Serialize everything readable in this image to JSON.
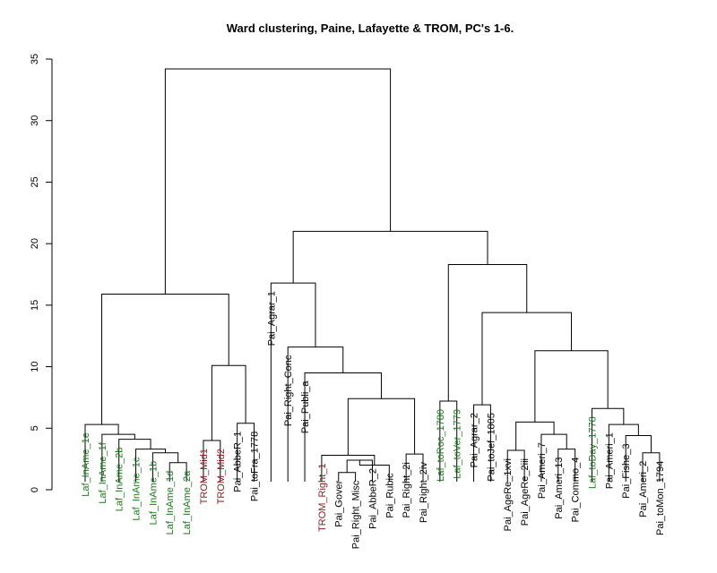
{
  "chart_data": {
    "type": "dendrogram",
    "title": "Ward clustering, Paine, Lafayette & TROM, PC's 1-6.",
    "ylim": [
      0,
      35
    ],
    "y_ticks": [
      0,
      5,
      10,
      15,
      20,
      25,
      30,
      35
    ],
    "colors": {
      "Laf": "#1a7a1a",
      "TROM": "#8b1a1a",
      "Pai": "#000000"
    },
    "leaves": [
      {
        "label": "Laf_InAme_1e",
        "group": "Laf"
      },
      {
        "label": "Laf_InAme_1f",
        "group": "Laf"
      },
      {
        "label": "Laf_InAme_2b",
        "group": "Laf"
      },
      {
        "label": "Laf_InAme_1c",
        "group": "Laf"
      },
      {
        "label": "Laf_InAme_1b",
        "group": "Laf"
      },
      {
        "label": "Laf_InAme_1d",
        "group": "Laf"
      },
      {
        "label": "Laf_InAme_2a",
        "group": "Laf"
      },
      {
        "label": "TROM_Mid1",
        "group": "TROM"
      },
      {
        "label": "TROM_Mid2",
        "group": "TROM"
      },
      {
        "label": "Pai_AbbeR_1",
        "group": "Pai"
      },
      {
        "label": "Pai_toFra_1778",
        "group": "Pai"
      },
      {
        "label": "Pai_Agrar_1",
        "group": "Pai"
      },
      {
        "label": "Pai_Right_Conc",
        "group": "Pai"
      },
      {
        "label": "Pai_Publi_a",
        "group": "Pai"
      },
      {
        "label": "TROM_Right_1",
        "group": "TROM"
      },
      {
        "label": "Pai_Gover",
        "group": "Pai"
      },
      {
        "label": "Pai_Right_Misc",
        "group": "Pai"
      },
      {
        "label": "Pai_AbbeR_2",
        "group": "Pai"
      },
      {
        "label": "Pai_Rubic",
        "group": "Pai"
      },
      {
        "label": "Pai_Right_2i",
        "group": "Pai"
      },
      {
        "label": "Pai_Right_2iv",
        "group": "Pai"
      },
      {
        "label": "Laf_toRoc_1780",
        "group": "Laf"
      },
      {
        "label": "Laf_toVer_1779",
        "group": "Laf"
      },
      {
        "label": "Pai_Agrar_2",
        "group": "Pai"
      },
      {
        "label": "Pai_toJef_1805",
        "group": "Pai"
      },
      {
        "label": "Pai_AgeRe_1xvi",
        "group": "Pai"
      },
      {
        "label": "Pai_AgeRe_2iii",
        "group": "Pai"
      },
      {
        "label": "Pai_Ameri_7",
        "group": "Pai"
      },
      {
        "label": "Pai_Ameri_13",
        "group": "Pai"
      },
      {
        "label": "Pai_Commo_4",
        "group": "Pai"
      },
      {
        "label": "Laf_toDay_1778",
        "group": "Laf"
      },
      {
        "label": "Pai_Ameri_1",
        "group": "Pai"
      },
      {
        "label": "Pai_Fishe_3",
        "group": "Pai"
      },
      {
        "label": "Pai_Ameri_2",
        "group": "Pai"
      },
      {
        "label": "Pai_toMon_1794",
        "group": "Pai"
      }
    ],
    "merges": [
      [
        6,
        7,
        2.2
      ],
      [
        5,
        36,
        3.0
      ],
      [
        4,
        37,
        3.3
      ],
      [
        3,
        38,
        4.1
      ],
      [
        2,
        39,
        4.5
      ],
      [
        1,
        40,
        5.3
      ],
      [
        10,
        11,
        5.4
      ],
      [
        8,
        9,
        4.0
      ],
      [
        43,
        42,
        10.1
      ],
      [
        41,
        44,
        15.9
      ],
      [
        16,
        17,
        1.4
      ],
      [
        46,
        18,
        2.4
      ],
      [
        47,
        19,
        2.0
      ],
      [
        15,
        48,
        2.8
      ],
      [
        20,
        21,
        2.9
      ],
      [
        49,
        50,
        7.4
      ],
      [
        14,
        51,
        9.5
      ],
      [
        13,
        52,
        11.6
      ],
      [
        12,
        53,
        16.8
      ],
      [
        22,
        23,
        7.2
      ],
      [
        24,
        25,
        6.9
      ],
      [
        26,
        27,
        3.2
      ],
      [
        29,
        30,
        3.3
      ],
      [
        28,
        58,
        4.5
      ],
      [
        57,
        59,
        5.5
      ],
      [
        34,
        35,
        3.0
      ],
      [
        33,
        61,
        4.4
      ],
      [
        32,
        62,
        5.3
      ],
      [
        31,
        63,
        6.6
      ],
      [
        60,
        64,
        11.3
      ],
      [
        56,
        65,
        14.4
      ],
      [
        55,
        66,
        18.3
      ],
      [
        54,
        67,
        21.0
      ],
      [
        45,
        68,
        34.2
      ]
    ]
  }
}
